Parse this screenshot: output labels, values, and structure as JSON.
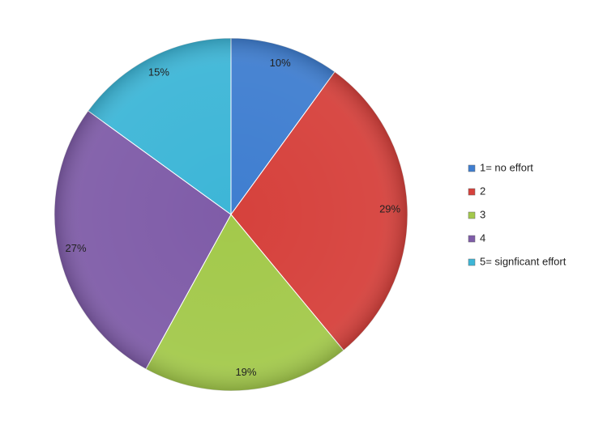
{
  "chart_data": {
    "type": "pie",
    "categories": [
      "1= no effort",
      "2",
      "3",
      "4",
      "5= signficant effort"
    ],
    "values": [
      10,
      29,
      19,
      27,
      15
    ],
    "value_labels": [
      "10%",
      "29%",
      "19%",
      "27%",
      "15%"
    ],
    "colors": [
      "#3f7ed0",
      "#d6413c",
      "#a3c94b",
      "#7f5ca8",
      "#3db6d7"
    ],
    "legend": "right"
  }
}
